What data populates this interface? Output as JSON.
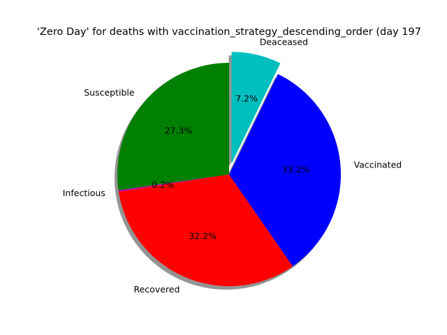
{
  "chart_data": {
    "type": "pie",
    "title": "'Zero Day' for deaths with vaccination_strategy_descending_order (day 197",
    "start_angle_deg": 90,
    "direction": "counterclockwise",
    "shadow": true,
    "slices": [
      {
        "label": "Susceptible",
        "percent": 27.3,
        "pct_label": "27.3%",
        "color": "#008000",
        "explode": false
      },
      {
        "label": "Infectious",
        "percent": 0.2,
        "pct_label": "0.2%",
        "color": "#bf00bf",
        "explode": false
      },
      {
        "label": "Recovered",
        "percent": 32.2,
        "pct_label": "32.2%",
        "color": "#ff0000",
        "explode": false
      },
      {
        "label": "Vaccinated",
        "percent": 33.2,
        "pct_label": "33.2%",
        "color": "#0000ff",
        "explode": false
      },
      {
        "label": "Deaceased",
        "percent": 7.2,
        "pct_label": "7.2%",
        "color": "#00bfbf",
        "explode": true
      }
    ]
  }
}
